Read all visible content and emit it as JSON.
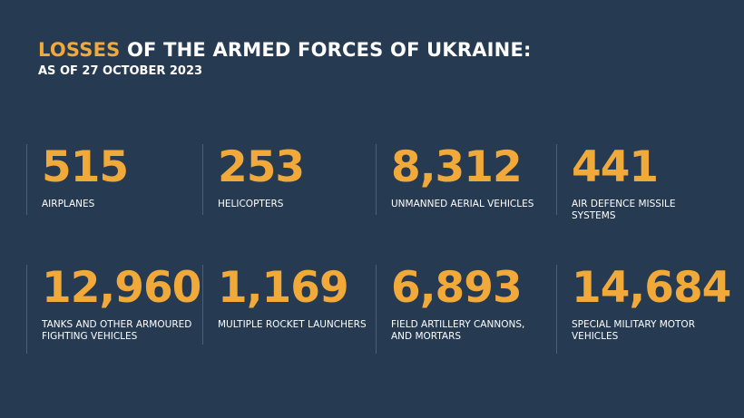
{
  "header": {
    "title_accent": "LOSSES",
    "title_rest": "OF THE ARMED FORCES OF UKRAINE:",
    "subtitle": "AS OF 27 OCTOBER 2023"
  },
  "stats": [
    {
      "value": "515",
      "label_line1": "AIRPLANES",
      "label_line2": ""
    },
    {
      "value": "253",
      "label_line1": "HELICOPTERS",
      "label_line2": ""
    },
    {
      "value": "8,312",
      "label_line1": "UNMANNED AERIAL VEHICLES",
      "label_line2": ""
    },
    {
      "value": "441",
      "label_line1": "AIR DEFENCE MISSILE",
      "label_line2": "SYSTEMS"
    },
    {
      "value": "12,960",
      "label_line1": "TANKS AND OTHER ARMOURED",
      "label_line2": "FIGHTING VEHICLES"
    },
    {
      "value": "1,169",
      "label_line1": "MULTIPLE ROCKET LAUNCHERS",
      "label_line2": ""
    },
    {
      "value": "6,893",
      "label_line1": "FIELD ARTILLERY CANNONS,",
      "label_line2": "AND MORTARS"
    },
    {
      "value": "14,684",
      "label_line1": "SPECIAL MILITARY MOTOR",
      "label_line2": "VEHICLES"
    }
  ],
  "colors": {
    "background": "#263a51",
    "accent": "#f1a93a",
    "text": "#ffffff"
  }
}
